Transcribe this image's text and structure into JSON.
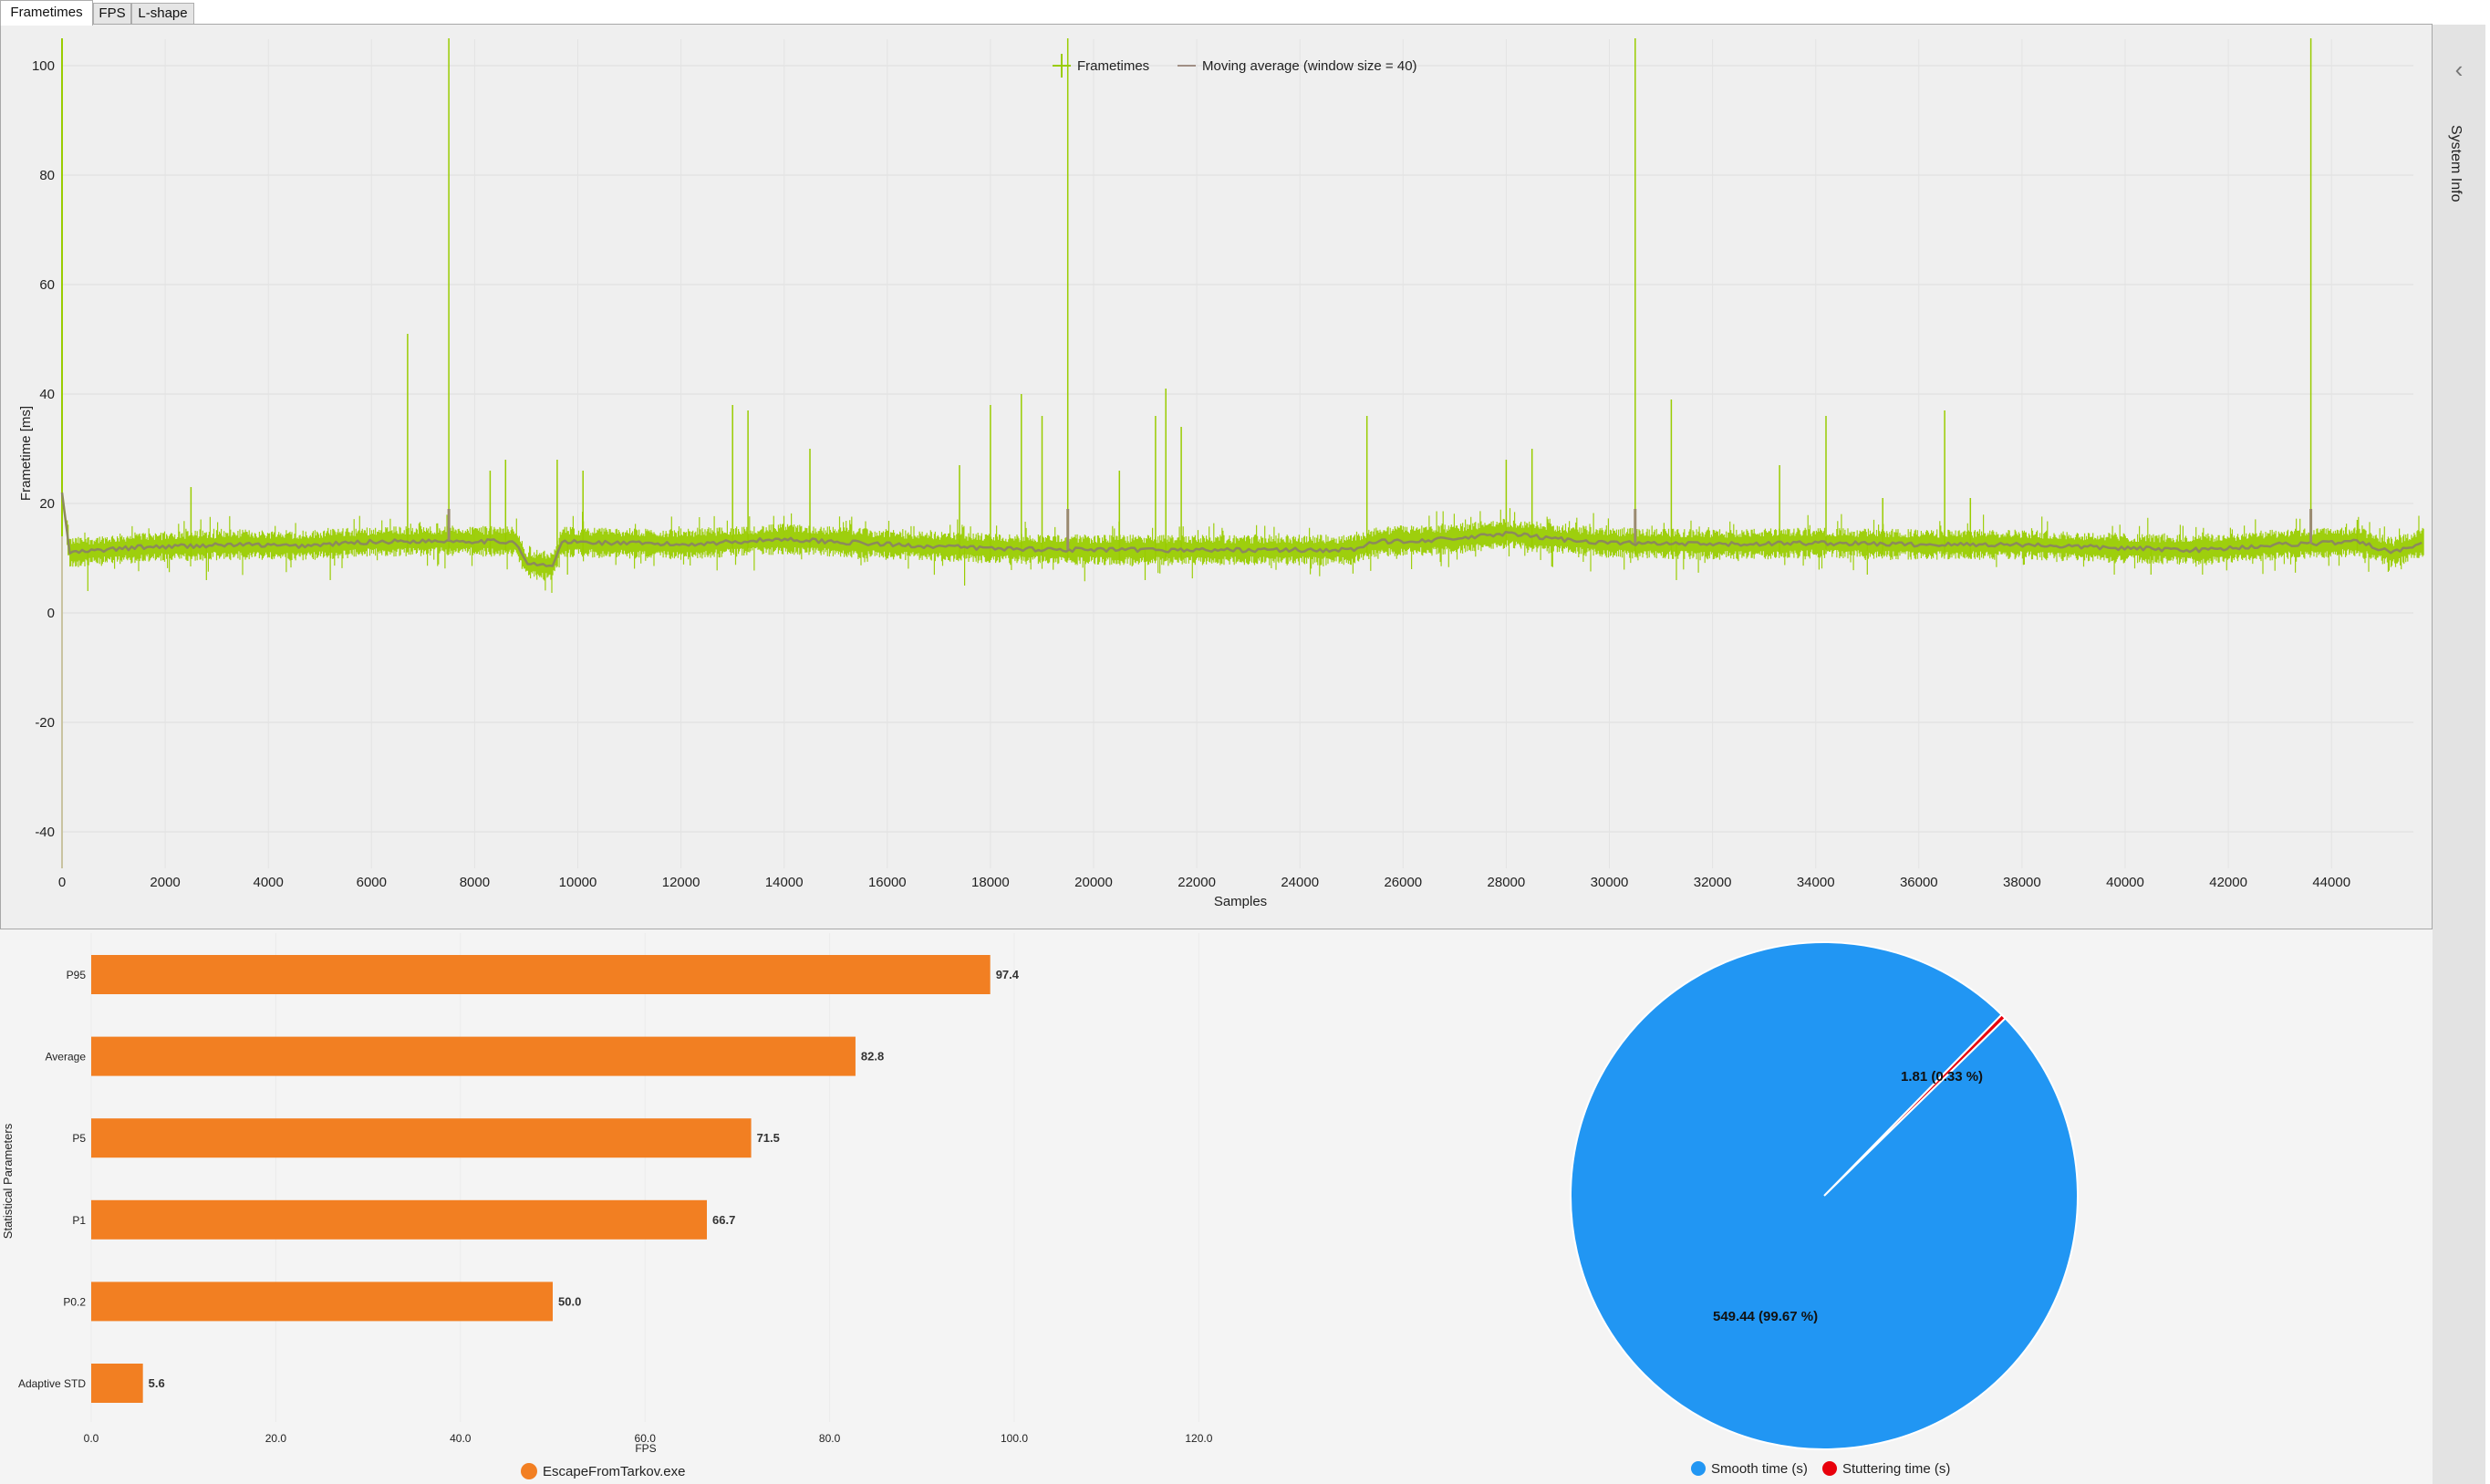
{
  "tabs": [
    {
      "label": "Frametimes",
      "active": true
    },
    {
      "label": "FPS",
      "active": false
    },
    {
      "label": "L-shape",
      "active": false
    }
  ],
  "side_panel": {
    "label": "System Info",
    "icon": "chevron-left-icon"
  },
  "colors": {
    "frametimes": "#99cc00",
    "moving_average": "#8c8a5c",
    "bar": "#f27f22",
    "smooth": "#2196f3",
    "stutter": "#e8000b",
    "grid": "#e2e2e2"
  },
  "chart_data": [
    {
      "type": "line",
      "title": "",
      "xlabel": "Samples",
      "ylabel": "Frametime [ms]",
      "xlim": [
        0,
        45800
      ],
      "ylim": [
        -46,
        105
      ],
      "x_ticks": [
        0,
        2000,
        4000,
        6000,
        8000,
        10000,
        12000,
        14000,
        16000,
        18000,
        20000,
        22000,
        24000,
        26000,
        28000,
        30000,
        32000,
        34000,
        36000,
        38000,
        40000,
        42000,
        44000
      ],
      "y_ticks": [
        -40,
        -20,
        0,
        20,
        40,
        60,
        80,
        100
      ],
      "grid": true,
      "legend_position": "top-center",
      "series": [
        {
          "name": "Frametimes",
          "baseline_segments": [
            [
              0,
              22
            ],
            [
              150,
              11
            ],
            [
              1500,
              12
            ],
            [
              3500,
              12.5
            ],
            [
              4500,
              12.2
            ],
            [
              6000,
              13
            ],
            [
              7500,
              13.2
            ],
            [
              8800,
              13
            ],
            [
              9000,
              9
            ],
            [
              9500,
              8.5
            ],
            [
              9700,
              13
            ],
            [
              12000,
              12.5
            ],
            [
              14000,
              13.5
            ],
            [
              16000,
              12.5
            ],
            [
              18000,
              11.8
            ],
            [
              20000,
              11.5
            ],
            [
              22000,
              11.5
            ],
            [
              24000,
              11.5
            ],
            [
              25000,
              11.5
            ],
            [
              25500,
              13
            ],
            [
              27000,
              13.5
            ],
            [
              28000,
              14.5
            ],
            [
              29000,
              13.5
            ],
            [
              30000,
              12.8
            ],
            [
              32000,
              12.5
            ],
            [
              34000,
              12.8
            ],
            [
              36000,
              12.5
            ],
            [
              38000,
              12.5
            ],
            [
              40000,
              11.8
            ],
            [
              41500,
              11.5
            ],
            [
              43000,
              12.5
            ],
            [
              44500,
              13
            ],
            [
              45200,
              11
            ],
            [
              45800,
              13
            ]
          ],
          "spikes": [
            [
              0,
              105
            ],
            [
              2500,
              23
            ],
            [
              6700,
              51
            ],
            [
              7500,
              105
            ],
            [
              8300,
              26
            ],
            [
              8600,
              28
            ],
            [
              9600,
              28
            ],
            [
              10100,
              26
            ],
            [
              13000,
              38
            ],
            [
              13300,
              37
            ],
            [
              14500,
              30
            ],
            [
              17400,
              27
            ],
            [
              18000,
              38
            ],
            [
              18600,
              40
            ],
            [
              19000,
              36
            ],
            [
              19500,
              105
            ],
            [
              20500,
              26
            ],
            [
              21200,
              36
            ],
            [
              21400,
              41
            ],
            [
              21700,
              34
            ],
            [
              25300,
              36
            ],
            [
              28000,
              28
            ],
            [
              28500,
              30
            ],
            [
              30500,
              105
            ],
            [
              31200,
              39
            ],
            [
              33300,
              27
            ],
            [
              34200,
              36
            ],
            [
              35300,
              21
            ],
            [
              36500,
              37
            ],
            [
              37000,
              21
            ],
            [
              43600,
              105
            ],
            [
              44500,
              17
            ]
          ]
        },
        {
          "name": "Moving average (window size = 40)",
          "window": 40
        }
      ]
    },
    {
      "type": "bar",
      "orientation": "horizontal",
      "title": "",
      "xlabel": "FPS",
      "ylabel": "Statistical Parameters",
      "categories": [
        "P95",
        "Average",
        "P5",
        "P1",
        "P0.2",
        "Adaptive STD"
      ],
      "values": [
        97.4,
        82.8,
        71.5,
        66.7,
        50.0,
        5.6
      ],
      "value_labels": [
        "97.4",
        "82.8",
        "71.5",
        "66.7",
        "50.0",
        "5.6"
      ],
      "x_ticks": [
        "0.0",
        "20.0",
        "40.0",
        "60.0",
        "80.0",
        "100.0",
        "120.0"
      ],
      "xlim": [
        0,
        130
      ],
      "series": [
        {
          "name": "EscapeFromTarkov.exe",
          "values": [
            97.4,
            82.8,
            71.5,
            66.7,
            50.0,
            5.6
          ]
        }
      ],
      "legend_position": "bottom-center"
    },
    {
      "type": "pie",
      "title": "",
      "categories": [
        "Smooth time (s)",
        "Stuttering time (s)"
      ],
      "values": [
        549.44,
        1.81
      ],
      "percentages": [
        99.67,
        0.33
      ],
      "slice_labels": [
        "549.44 (99.67 %)",
        "1.81 (0.33 %)"
      ],
      "legend_position": "bottom-center"
    }
  ],
  "frametime_chart": {
    "ylabel": "Frametime [ms]",
    "xlabel": "Samples",
    "legend": [
      "Frametimes",
      "Moving average (window size = 40)"
    ]
  },
  "bar_chart": {
    "ylabel": "Statistical Parameters",
    "xlabel": "FPS",
    "legend": "EscapeFromTarkov.exe"
  },
  "pie_chart": {
    "legend": [
      "Smooth time (s)",
      "Stuttering time (s)"
    ],
    "labels": [
      "549.44 (99.67 %)",
      "1.81 (0.33 %)"
    ]
  }
}
